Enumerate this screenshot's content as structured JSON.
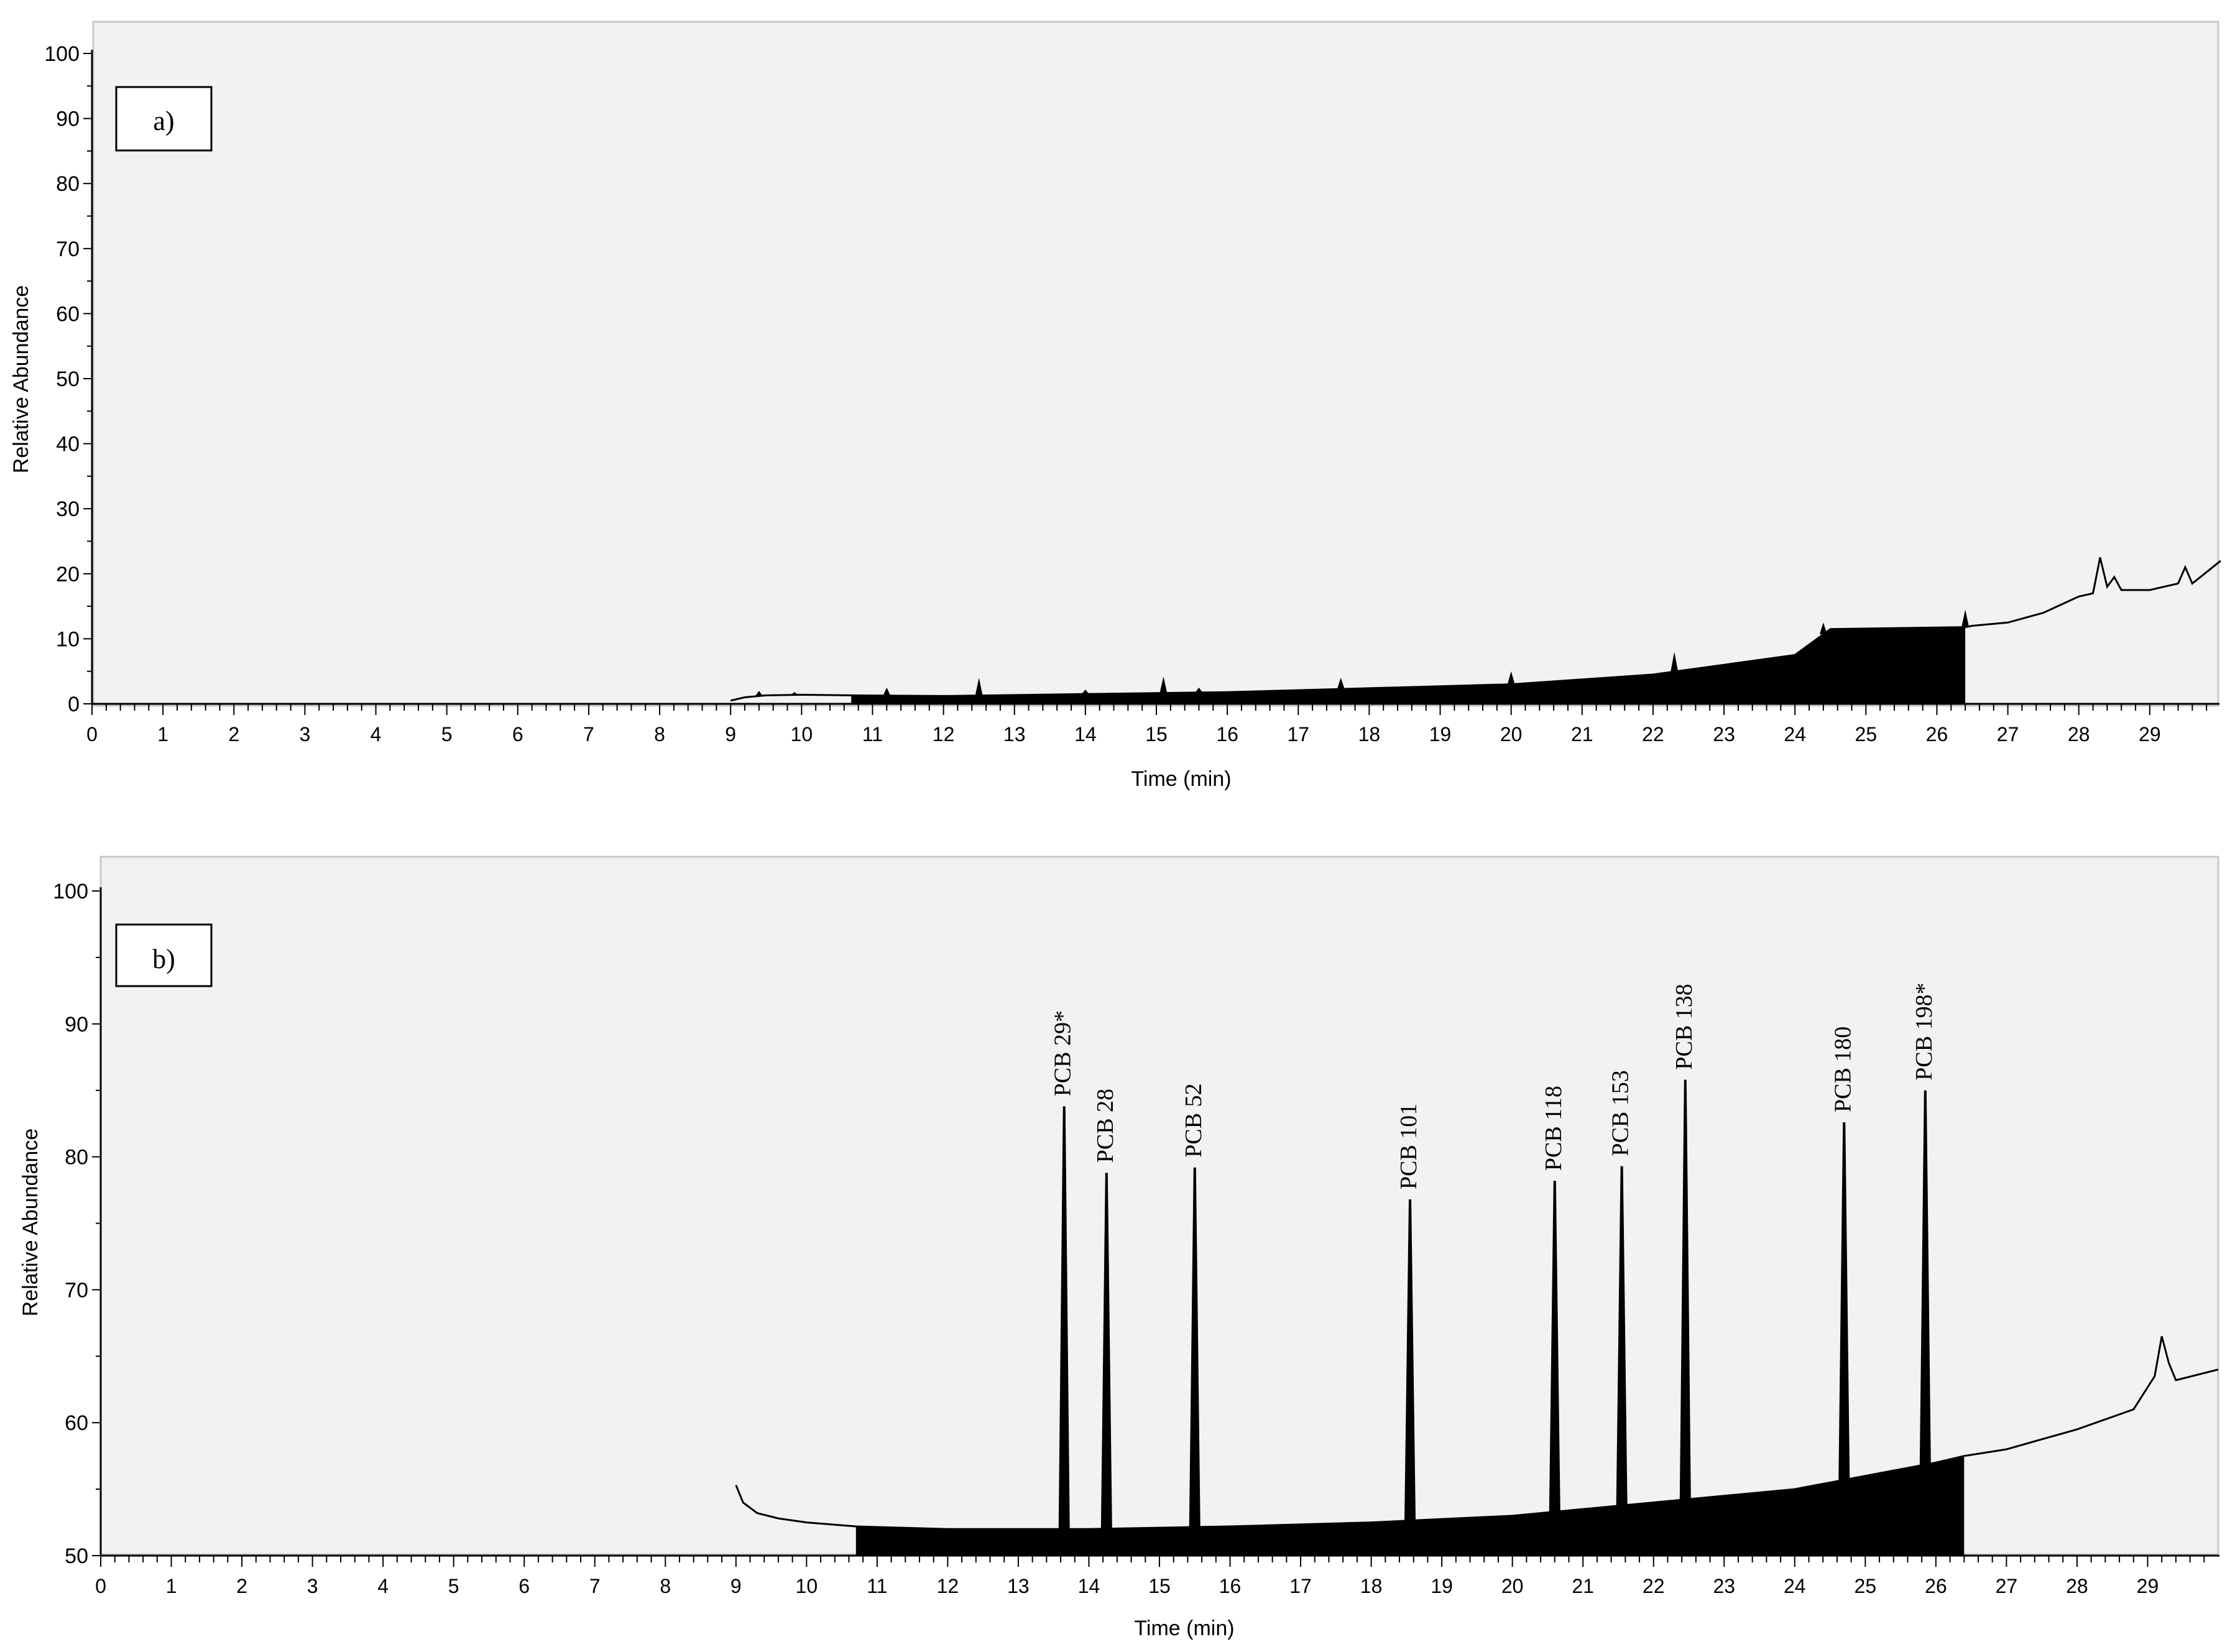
{
  "chart_data": [
    {
      "type": "line",
      "panel_label": "a)",
      "xlabel": "Time (min)",
      "ylabel": "Relative Abundance",
      "xlim": [
        0,
        30
      ],
      "ylim": [
        0,
        100
      ],
      "x_ticks": [
        "0",
        "1",
        "2",
        "3",
        "4",
        "5",
        "6",
        "7",
        "8",
        "9",
        "10",
        "11",
        "12",
        "13",
        "14",
        "15",
        "16",
        "17",
        "18",
        "19",
        "20",
        "21",
        "22",
        "23",
        "24",
        "25",
        "26",
        "27",
        "28",
        "29"
      ],
      "y_ticks": [
        "0",
        "10",
        "20",
        "30",
        "40",
        "50",
        "60",
        "70",
        "80",
        "90",
        "100"
      ],
      "baseline_trace": [
        [
          9.0,
          0.5
        ],
        [
          9.2,
          1.0
        ],
        [
          9.5,
          1.3
        ],
        [
          10.0,
          1.4
        ],
        [
          10.7,
          1.3
        ],
        [
          12.0,
          1.2
        ],
        [
          14.0,
          1.5
        ],
        [
          16.0,
          1.8
        ],
        [
          18.0,
          2.4
        ],
        [
          20.0,
          3.0
        ],
        [
          22.0,
          4.5
        ],
        [
          23.0,
          6.0
        ],
        [
          24.0,
          7.5
        ],
        [
          24.5,
          11.5
        ],
        [
          26.4,
          11.8
        ],
        [
          26.5,
          12.0
        ],
        [
          27.0,
          12.5
        ],
        [
          27.5,
          14.0
        ],
        [
          28.0,
          16.5
        ],
        [
          28.2,
          17.0
        ],
        [
          28.3,
          22.5
        ],
        [
          28.4,
          18.0
        ],
        [
          28.5,
          19.5
        ],
        [
          28.6,
          17.5
        ],
        [
          29.0,
          17.5
        ],
        [
          29.4,
          18.5
        ],
        [
          29.5,
          21.0
        ],
        [
          29.6,
          18.5
        ],
        [
          30.0,
          22.0
        ]
      ],
      "filled_region": [
        10.7,
        26.4
      ],
      "small_peaks": [
        [
          9.4,
          2.0
        ],
        [
          9.9,
          1.8
        ],
        [
          11.2,
          2.5
        ],
        [
          12.5,
          4.0
        ],
        [
          14.0,
          2.2
        ],
        [
          15.1,
          4.2
        ],
        [
          15.6,
          2.5
        ],
        [
          17.6,
          4.0
        ],
        [
          20.0,
          5.0
        ],
        [
          22.3,
          8.0
        ],
        [
          24.4,
          12.5
        ],
        [
          26.4,
          14.5
        ]
      ]
    },
    {
      "type": "line",
      "panel_label": "b)",
      "xlabel": "Time (min)",
      "ylabel": "Relative Abundance",
      "xlim": [
        0,
        30
      ],
      "ylim": [
        50,
        100
      ],
      "x_ticks": [
        "0",
        "1",
        "2",
        "3",
        "4",
        "5",
        "6",
        "7",
        "8",
        "9",
        "10",
        "11",
        "12",
        "13",
        "14",
        "15",
        "16",
        "17",
        "18",
        "19",
        "20",
        "21",
        "22",
        "23",
        "24",
        "25",
        "26",
        "27",
        "28",
        "29"
      ],
      "y_ticks": [
        "50",
        "60",
        "70",
        "80",
        "90",
        "100"
      ],
      "baseline_trace": [
        [
          9.0,
          55.3
        ],
        [
          9.1,
          54.0
        ],
        [
          9.3,
          53.2
        ],
        [
          9.6,
          52.8
        ],
        [
          10.0,
          52.5
        ],
        [
          10.7,
          52.2
        ],
        [
          12.0,
          52.0
        ],
        [
          14.0,
          52.0
        ],
        [
          16.0,
          52.2
        ],
        [
          18.0,
          52.5
        ],
        [
          20.0,
          53.0
        ],
        [
          22.0,
          54.0
        ],
        [
          23.0,
          54.5
        ],
        [
          24.0,
          55.0
        ],
        [
          25.0,
          56.0
        ],
        [
          26.0,
          57.0
        ],
        [
          26.4,
          57.5
        ],
        [
          27.0,
          58.0
        ],
        [
          28.0,
          59.5
        ],
        [
          28.8,
          61.0
        ],
        [
          29.1,
          63.5
        ],
        [
          29.2,
          66.5
        ],
        [
          29.3,
          64.5
        ],
        [
          29.4,
          63.2
        ],
        [
          30.0,
          64.0
        ]
      ],
      "filled_region": [
        10.7,
        26.4
      ],
      "peaks": [
        {
          "label": "PCB 29*",
          "x": 13.65,
          "y": 83.8
        },
        {
          "label": "PCB 28",
          "x": 14.25,
          "y": 78.8
        },
        {
          "label": "PCB 52",
          "x": 15.5,
          "y": 79.2
        },
        {
          "label": "PCB 101",
          "x": 18.55,
          "y": 76.8
        },
        {
          "label": "PCB 118",
          "x": 20.6,
          "y": 78.2
        },
        {
          "label": "PCB 153",
          "x": 21.55,
          "y": 79.3
        },
        {
          "label": "PCB 138",
          "x": 22.45,
          "y": 85.8
        },
        {
          "label": "PCB 180",
          "x": 24.7,
          "y": 82.6
        },
        {
          "label": "PCB 198*",
          "x": 25.85,
          "y": 85.0
        }
      ]
    }
  ]
}
